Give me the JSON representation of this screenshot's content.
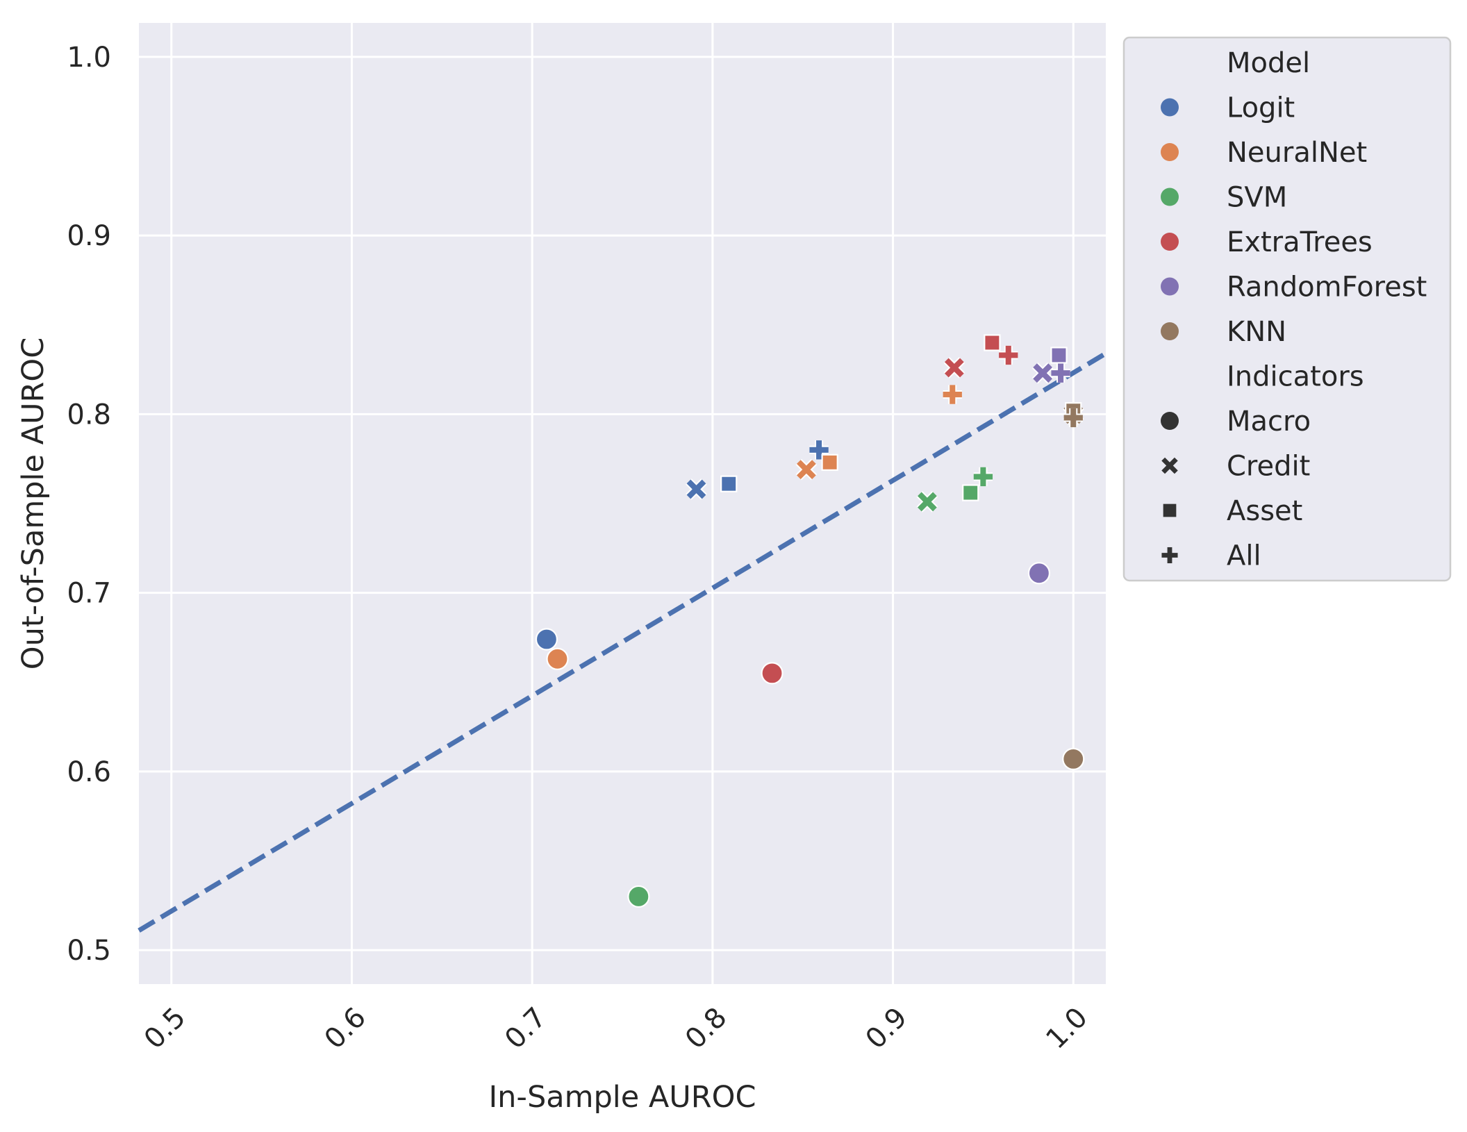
{
  "chart_data": {
    "type": "scatter",
    "title": "",
    "xlabel": "In-Sample AUROC",
    "ylabel": "Out-of-Sample AUROC",
    "xlim": [
      0.482,
      1.018
    ],
    "ylim": [
      0.481,
      1.019
    ],
    "xticks": [
      0.5,
      0.6,
      0.7,
      0.8,
      0.9,
      1.0
    ],
    "xtick_labels": [
      "0.5",
      "0.6",
      "0.7",
      "0.8",
      "0.9",
      "1.0"
    ],
    "yticks": [
      0.5,
      0.6,
      0.7,
      0.8,
      0.9,
      1.0
    ],
    "ytick_labels": [
      "0.5",
      "0.6",
      "0.7",
      "0.8",
      "0.9",
      "1.0"
    ],
    "grid": true,
    "background": "#eaeaf2",
    "grid_color": "#ffffff",
    "reference_line": {
      "style": "dashed",
      "color": "#4c72b0",
      "points": [
        [
          0.482,
          0.511
        ],
        [
          1.018,
          0.834
        ]
      ]
    },
    "legend": {
      "placement": "outside-right",
      "hue_title": "Model",
      "hue_entries": [
        {
          "label": "Logit",
          "color": "#4c72b0"
        },
        {
          "label": "NeuralNet",
          "color": "#dd8452"
        },
        {
          "label": "SVM",
          "color": "#55a868"
        },
        {
          "label": "ExtraTrees",
          "color": "#c44e52"
        },
        {
          "label": "RandomForest",
          "color": "#8172b3"
        },
        {
          "label": "KNN",
          "color": "#937860"
        }
      ],
      "style_title": "Indicators",
      "style_entries": [
        {
          "label": "Macro",
          "marker": "circle"
        },
        {
          "label": "Credit",
          "marker": "x"
        },
        {
          "label": "Asset",
          "marker": "square"
        },
        {
          "label": "All",
          "marker": "plus"
        }
      ]
    },
    "points": [
      {
        "model": "Logit",
        "indicators": "Macro",
        "x": 0.708,
        "y": 0.674
      },
      {
        "model": "Logit",
        "indicators": "Credit",
        "x": 0.791,
        "y": 0.758
      },
      {
        "model": "Logit",
        "indicators": "Asset",
        "x": 0.809,
        "y": 0.761
      },
      {
        "model": "Logit",
        "indicators": "All",
        "x": 0.859,
        "y": 0.78
      },
      {
        "model": "NeuralNet",
        "indicators": "Macro",
        "x": 0.714,
        "y": 0.663
      },
      {
        "model": "NeuralNet",
        "indicators": "Credit",
        "x": 0.852,
        "y": 0.769
      },
      {
        "model": "NeuralNet",
        "indicators": "Asset",
        "x": 0.865,
        "y": 0.773
      },
      {
        "model": "NeuralNet",
        "indicators": "All",
        "x": 0.933,
        "y": 0.811
      },
      {
        "model": "SVM",
        "indicators": "Macro",
        "x": 0.759,
        "y": 0.53
      },
      {
        "model": "SVM",
        "indicators": "Credit",
        "x": 0.919,
        "y": 0.751
      },
      {
        "model": "SVM",
        "indicators": "Asset",
        "x": 0.943,
        "y": 0.756
      },
      {
        "model": "SVM",
        "indicators": "All",
        "x": 0.95,
        "y": 0.765
      },
      {
        "model": "ExtraTrees",
        "indicators": "Macro",
        "x": 0.833,
        "y": 0.655
      },
      {
        "model": "ExtraTrees",
        "indicators": "Credit",
        "x": 0.934,
        "y": 0.826
      },
      {
        "model": "ExtraTrees",
        "indicators": "Asset",
        "x": 0.955,
        "y": 0.84
      },
      {
        "model": "ExtraTrees",
        "indicators": "All",
        "x": 0.964,
        "y": 0.833
      },
      {
        "model": "RandomForest",
        "indicators": "Macro",
        "x": 0.981,
        "y": 0.711
      },
      {
        "model": "RandomForest",
        "indicators": "Credit",
        "x": 0.983,
        "y": 0.823
      },
      {
        "model": "RandomForest",
        "indicators": "Asset",
        "x": 0.992,
        "y": 0.833
      },
      {
        "model": "RandomForest",
        "indicators": "All",
        "x": 0.993,
        "y": 0.823
      },
      {
        "model": "KNN",
        "indicators": "Macro",
        "x": 1.0,
        "y": 0.607
      },
      {
        "model": "KNN",
        "indicators": "Credit",
        "x": 1.0,
        "y": 0.8
      },
      {
        "model": "KNN",
        "indicators": "Asset",
        "x": 1.0,
        "y": 0.802
      },
      {
        "model": "KNN",
        "indicators": "All",
        "x": 1.0,
        "y": 0.798
      }
    ]
  }
}
